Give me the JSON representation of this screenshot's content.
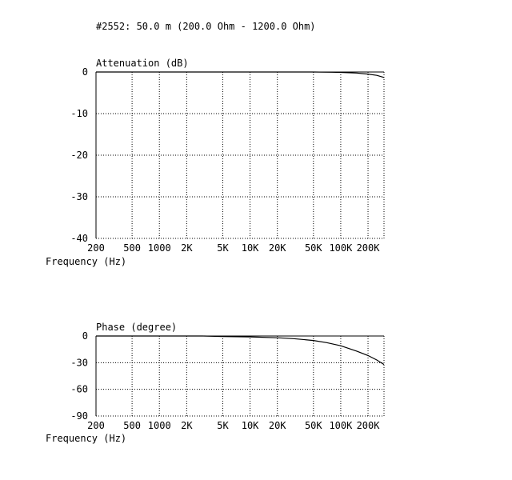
{
  "page_title": "#2552: 50.0 m (200.0 Ohm - 1200.0 Ohm)",
  "chart_data": [
    {
      "type": "line",
      "title": "Attenuation (dB)",
      "xlabel": "Frequency (Hz)",
      "ylabel": "Attenuation (dB)",
      "x_scale": "log",
      "xlim": [
        200,
        300000
      ],
      "ylim": [
        -40,
        0
      ],
      "x_ticks": [
        200,
        500,
        1000,
        2000,
        5000,
        10000,
        20000,
        50000,
        100000,
        200000
      ],
      "x_tick_labels": [
        "200",
        "500",
        "1000",
        "2K",
        "5K",
        "10K",
        "20K",
        "50K",
        "100K",
        "200K"
      ],
      "y_ticks": [
        0,
        -10,
        -20,
        -30,
        -40
      ],
      "y_tick_labels": [
        "0",
        "-10",
        "-20",
        "-30",
        "-40"
      ],
      "grid": true,
      "series": [
        {
          "x": [
            200,
            1000,
            10000,
            50000,
            80000,
            100000,
            150000,
            200000,
            250000,
            300000
          ],
          "y": [
            0,
            0,
            0,
            0,
            -0.05,
            -0.1,
            -0.25,
            -0.5,
            -0.8,
            -1.3
          ]
        }
      ]
    },
    {
      "type": "line",
      "title": "Phase (degree)",
      "xlabel": "Frequency (Hz)",
      "ylabel": "Phase (degree)",
      "x_scale": "log",
      "xlim": [
        200,
        300000
      ],
      "ylim": [
        -90,
        0
      ],
      "x_ticks": [
        200,
        500,
        1000,
        2000,
        5000,
        10000,
        20000,
        50000,
        100000,
        200000
      ],
      "x_tick_labels": [
        "200",
        "500",
        "1000",
        "2K",
        "5K",
        "10K",
        "20K",
        "50K",
        "100K",
        "200K"
      ],
      "y_ticks": [
        0,
        -30,
        -60,
        -90
      ],
      "y_tick_labels": [
        "0",
        "-30",
        "-60",
        "-90"
      ],
      "grid": true,
      "series": [
        {
          "x": [
            200,
            1000,
            3000,
            5000,
            10000,
            20000,
            30000,
            50000,
            70000,
            100000,
            150000,
            200000,
            250000,
            300000
          ],
          "y": [
            0,
            0,
            0,
            -0.5,
            -1,
            -2,
            -3,
            -5,
            -7.5,
            -11,
            -17,
            -22,
            -27,
            -32
          ]
        }
      ]
    }
  ]
}
